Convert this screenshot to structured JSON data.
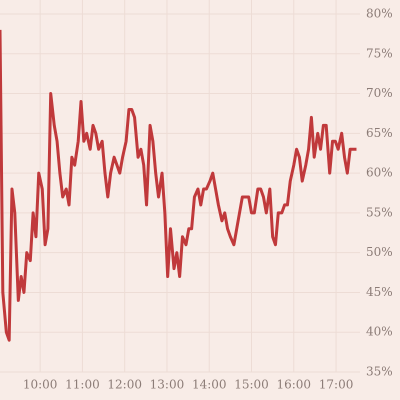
{
  "chart_data": {
    "type": "line",
    "x": [
      "09:03",
      "09:07",
      "09:12",
      "09:16",
      "09:20",
      "09:24",
      "09:29",
      "09:33",
      "09:37",
      "09:41",
      "09:46",
      "09:50",
      "09:54",
      "09:58",
      "10:03",
      "10:07",
      "10:11",
      "10:15",
      "10:20",
      "10:24",
      "10:28",
      "10:32",
      "10:37",
      "10:41",
      "10:45",
      "10:49",
      "10:54",
      "10:58",
      "11:02",
      "11:06",
      "11:11",
      "11:15",
      "11:19",
      "11:23",
      "11:28",
      "11:32",
      "11:36",
      "11:40",
      "11:45",
      "11:49",
      "11:53",
      "11:57",
      "12:02",
      "12:06",
      "12:10",
      "12:14",
      "12:19",
      "12:23",
      "12:27",
      "12:31",
      "12:36",
      "12:40",
      "12:44",
      "12:48",
      "12:53",
      "12:57",
      "13:01",
      "13:05",
      "13:10",
      "13:14",
      "13:18",
      "13:22",
      "13:27",
      "13:31",
      "13:35",
      "13:39",
      "13:44",
      "13:48",
      "13:52",
      "13:56",
      "14:01",
      "14:05",
      "14:09",
      "14:13",
      "14:18",
      "14:22",
      "14:26",
      "14:30",
      "14:35",
      "14:39",
      "14:43",
      "14:47",
      "14:52",
      "14:56",
      "15:00",
      "15:04",
      "15:09",
      "15:13",
      "15:17",
      "15:21",
      "15:26",
      "15:30",
      "15:34",
      "15:38",
      "15:43",
      "15:47",
      "15:51",
      "15:55",
      "16:00",
      "16:04",
      "16:08",
      "16:12",
      "16:17",
      "16:21",
      "16:25",
      "16:29",
      "16:34",
      "16:38",
      "16:42",
      "16:46",
      "16:51",
      "16:55",
      "16:59",
      "17:03",
      "17:08",
      "17:12",
      "17:16",
      "17:20",
      "17:25",
      "17:29"
    ],
    "series": [
      {
        "color": "#c0393b",
        "values": [
          78,
          45,
          40,
          39,
          58,
          55,
          44,
          47,
          45,
          50,
          49,
          55,
          52,
          60,
          58,
          51,
          53,
          70,
          66,
          64,
          60,
          57,
          58,
          56,
          62,
          61,
          64,
          69,
          64,
          65,
          63,
          66,
          65,
          63,
          64,
          60,
          57,
          60,
          62,
          61,
          60,
          62,
          64,
          68,
          68,
          67,
          62,
          63,
          61,
          56,
          66,
          64,
          60,
          57,
          60,
          55,
          47,
          53,
          48,
          50,
          47,
          52,
          51,
          53,
          53,
          57,
          58,
          56,
          58,
          58,
          59,
          60,
          58,
          56,
          54,
          55,
          53,
          52,
          51,
          53,
          55,
          57,
          57,
          57,
          55,
          55,
          58,
          58,
          57,
          55,
          58,
          52,
          51,
          55,
          55,
          56,
          56,
          59,
          61,
          63,
          62,
          59,
          61,
          63,
          67,
          62,
          65,
          63,
          66,
          66,
          60,
          64,
          64,
          63,
          65,
          62,
          60,
          63,
          63,
          63
        ]
      }
    ],
    "xlim": [
      "09:03",
      "17:34"
    ],
    "xticks": [
      "10:00",
      "11:00",
      "12:00",
      "13:00",
      "14:00",
      "15:00",
      "16:00",
      "17:00"
    ],
    "ylim": [
      35,
      80
    ],
    "yticks": [
      {
        "value": 35,
        "label": "35%"
      },
      {
        "value": 40,
        "label": "40%"
      },
      {
        "value": 45,
        "label": "45%"
      },
      {
        "value": 50,
        "label": "50%"
      },
      {
        "value": 55,
        "label": "55%"
      },
      {
        "value": 60,
        "label": "60%"
      },
      {
        "value": 65,
        "label": "65%"
      },
      {
        "value": 70,
        "label": "70%"
      },
      {
        "value": 75,
        "label": "75%"
      },
      {
        "value": 80,
        "label": "80%"
      }
    ],
    "grid": true
  }
}
